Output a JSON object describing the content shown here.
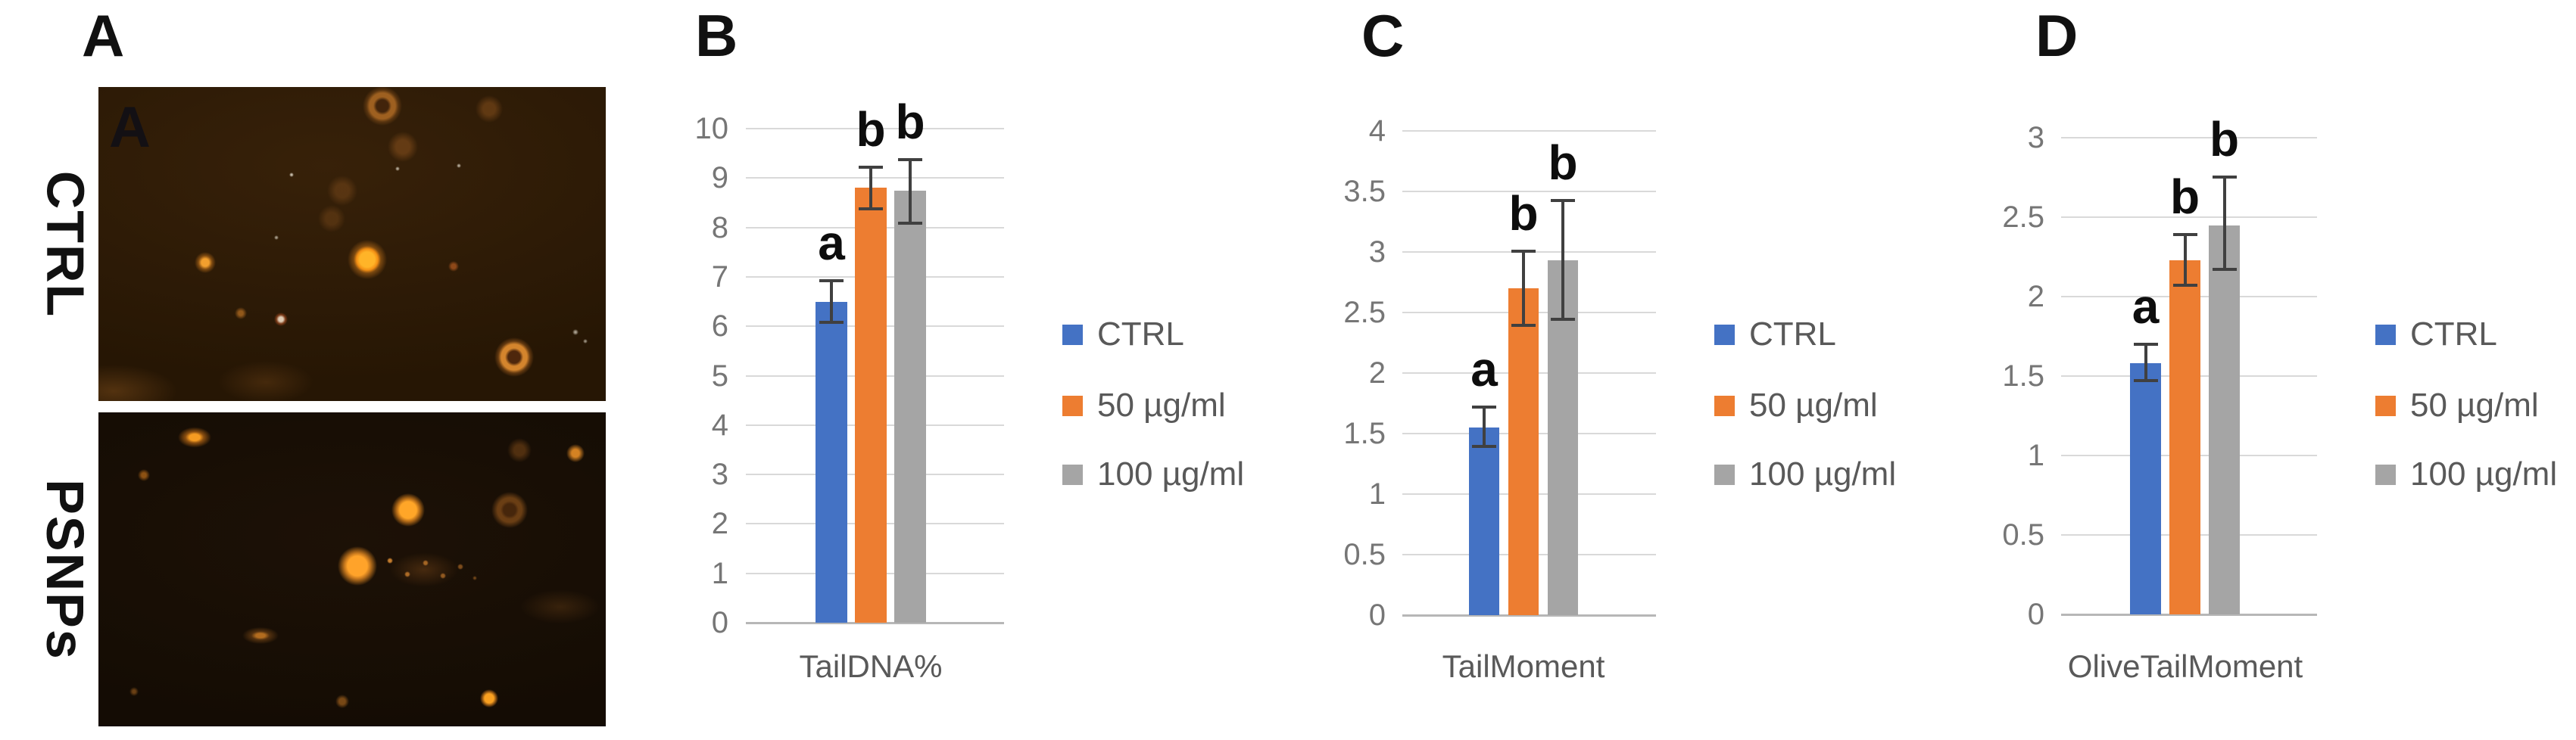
{
  "figure": {
    "panel_a": {
      "label": "A",
      "watermark": "A",
      "row_labels": [
        "CTRL",
        "PSNPs"
      ]
    },
    "colors": {
      "ctrl": "#4472C4",
      "dose50": "#ED7D31",
      "dose100": "#A5A5A5",
      "error_bar": "#404040",
      "gridline": "#D9D9D9",
      "axis_tick_text": "#767676",
      "label_text": "#595959",
      "sig_letter_text": "#0D0D0D"
    }
  },
  "chart_data": [
    {
      "panel": "B",
      "type": "bar",
      "categories": [
        "TailDNA%"
      ],
      "ylim": [
        0,
        10
      ],
      "ytick_step": 1,
      "yticks": [
        "10",
        "9",
        "8",
        "7",
        "6",
        "5",
        "4",
        "3",
        "2",
        "1",
        "0"
      ],
      "grid": true,
      "legend_position": "right",
      "series": [
        {
          "name": "CTRL",
          "color": "#4472C4",
          "values": [
            6.5
          ],
          "error_low": [
            6.05
          ],
          "error_high": [
            6.95
          ],
          "sig": [
            "a"
          ]
        },
        {
          "name": "50 µg/ml",
          "color": "#ED7D31",
          "values": [
            8.8
          ],
          "error_low": [
            8.35
          ],
          "error_high": [
            9.25
          ],
          "sig": [
            "b"
          ]
        },
        {
          "name": "100 µg/ml",
          "color": "#A5A5A5",
          "values": [
            8.75
          ],
          "error_low": [
            8.05
          ],
          "error_high": [
            9.4
          ],
          "sig": [
            "b"
          ]
        }
      ]
    },
    {
      "panel": "C",
      "type": "bar",
      "categories": [
        "TailMoment"
      ],
      "ylim": [
        0,
        4
      ],
      "ytick_step": 0.5,
      "yticks": [
        "4",
        "3.5",
        "3",
        "2.5",
        "2",
        "1.5",
        "1",
        "0.5",
        "0"
      ],
      "grid": true,
      "legend_position": "right",
      "series": [
        {
          "name": "CTRL",
          "color": "#4472C4",
          "values": [
            1.55
          ],
          "error_low": [
            1.38
          ],
          "error_high": [
            1.73
          ],
          "sig": [
            "a"
          ]
        },
        {
          "name": "50 µg/ml",
          "color": "#ED7D31",
          "values": [
            2.7
          ],
          "error_low": [
            2.38
          ],
          "error_high": [
            3.02
          ],
          "sig": [
            "b"
          ]
        },
        {
          "name": "100 µg/ml",
          "color": "#A5A5A5",
          "values": [
            2.93
          ],
          "error_low": [
            2.43
          ],
          "error_high": [
            3.44
          ],
          "sig": [
            "b"
          ]
        }
      ]
    },
    {
      "panel": "D",
      "type": "bar",
      "categories": [
        "OliveTailMoment"
      ],
      "ylim": [
        0,
        3
      ],
      "ytick_step": 0.5,
      "yticks": [
        "3",
        "2.5",
        "2",
        "1.5",
        "1",
        "0.5",
        "0"
      ],
      "grid": true,
      "legend_position": "right",
      "series": [
        {
          "name": "CTRL",
          "color": "#4472C4",
          "values": [
            1.58
          ],
          "error_low": [
            1.46
          ],
          "error_high": [
            1.71
          ],
          "sig": [
            "a"
          ]
        },
        {
          "name": "50 µg/ml",
          "color": "#ED7D31",
          "values": [
            2.23
          ],
          "error_low": [
            2.06
          ],
          "error_high": [
            2.4
          ],
          "sig": [
            "b"
          ]
        },
        {
          "name": "100 µg/ml",
          "color": "#A5A5A5",
          "values": [
            2.45
          ],
          "error_low": [
            2.16
          ],
          "error_high": [
            2.76
          ],
          "sig": [
            "b"
          ]
        }
      ]
    }
  ]
}
